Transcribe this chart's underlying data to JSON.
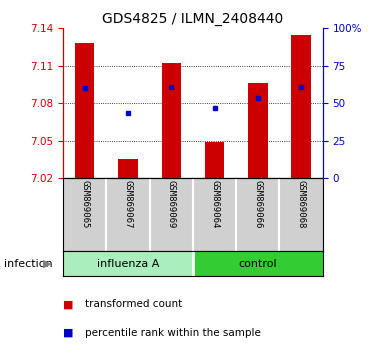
{
  "title": "GDS4825 / ILMN_2408440",
  "samples": [
    "GSM869065",
    "GSM869067",
    "GSM869069",
    "GSM869064",
    "GSM869066",
    "GSM869068"
  ],
  "bar_bottom": 7.02,
  "bar_tops": [
    7.128,
    7.035,
    7.112,
    7.049,
    7.096,
    7.135
  ],
  "blue_dot_y": [
    7.092,
    7.072,
    7.093,
    7.076,
    7.084,
    7.093
  ],
  "ylim": [
    7.02,
    7.14
  ],
  "yticks": [
    7.02,
    7.05,
    7.08,
    7.11,
    7.14
  ],
  "y2ticks": [
    0,
    25,
    50,
    75,
    100
  ],
  "y2tick_labels": [
    "0",
    "25",
    "50",
    "75",
    "100%"
  ],
  "left_color": "#CC0000",
  "right_color": "#0000CC",
  "bar_color": "#CC0000",
  "dot_color": "#0000CC",
  "infection_label": "infection",
  "legend_bar": "transformed count",
  "legend_dot": "percentile rank within the sample",
  "sample_bg": "#d0d0d0",
  "group_bg_light": "#aaeebb",
  "group_bg_dark": "#33cc33",
  "group1_label": "influenza A",
  "group2_label": "control"
}
